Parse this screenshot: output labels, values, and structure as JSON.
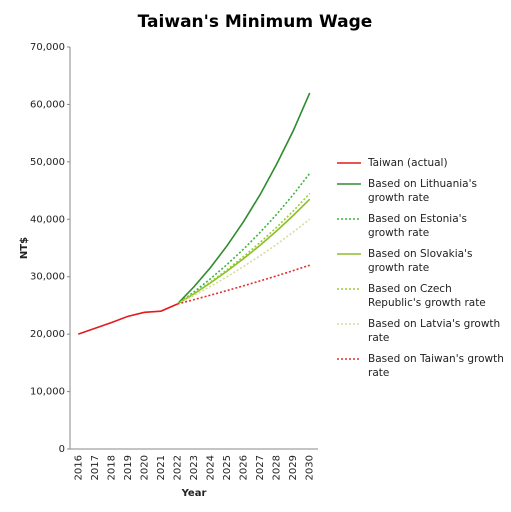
{
  "chart_data": {
    "type": "line",
    "title": "Taiwan's Minimum Wage",
    "x_label": "Year",
    "y_label": "NT$",
    "categories": [
      "2016",
      "2017",
      "2018",
      "2019",
      "2020",
      "2021",
      "2022",
      "2023",
      "2024",
      "2025",
      "2026",
      "2027",
      "2028",
      "2029",
      "2030"
    ],
    "ylim": [
      0,
      70000
    ],
    "yticks": [
      0,
      {
        "value": 10000,
        "label": "10,000"
      },
      {
        "value": 20000,
        "label": "20,000"
      },
      {
        "value": 30000,
        "label": "30,000"
      },
      {
        "value": 40000,
        "label": "40,000"
      },
      {
        "value": 50000,
        "label": "50,000"
      },
      {
        "value": 60000,
        "label": "60,000"
      },
      {
        "value": 70000,
        "label": "70,000"
      }
    ],
    "grid": false,
    "series": [
      {
        "name": "Taiwan (actual)",
        "color": "#e41a1c",
        "dash": "solid",
        "values": [
          20008,
          21009,
          22000,
          23100,
          23800,
          24000,
          25250,
          null,
          null,
          null,
          null,
          null,
          null,
          null,
          null
        ]
      },
      {
        "name": "Based on Lithuania's growth rate",
        "color": "#2e8b2e",
        "dash": "solid",
        "values": [
          null,
          null,
          null,
          null,
          null,
          null,
          25250,
          28250,
          31600,
          35400,
          39600,
          44300,
          49600,
          55400,
          62000
        ]
      },
      {
        "name": "Based on Estonia's growth rate",
        "color": "#3cb43c",
        "dash": "dotted",
        "values": [
          null,
          null,
          null,
          null,
          null,
          null,
          25250,
          27360,
          29650,
          32130,
          34810,
          37720,
          40870,
          44290,
          48000
        ]
      },
      {
        "name": "Based on Slovakia's growth rate",
        "color": "#8cbf26",
        "dash": "solid",
        "values": [
          null,
          null,
          null,
          null,
          null,
          null,
          25250,
          27030,
          28930,
          30970,
          33150,
          35480,
          37980,
          40660,
          43500
        ]
      },
      {
        "name": "Based on Czech Republic's growth rate",
        "color": "#9acd32",
        "dash": "dotted",
        "values": [
          null,
          null,
          null,
          null,
          null,
          null,
          25250,
          27100,
          29090,
          31220,
          33510,
          35970,
          38610,
          41440,
          44500
        ]
      },
      {
        "name": "Based on Latvia's growth rate",
        "color": "#d4dca0",
        "dash": "dotted",
        "values": [
          null,
          null,
          null,
          null,
          null,
          null,
          25250,
          26740,
          28330,
          30000,
          31780,
          33660,
          35650,
          37770,
          40000
        ]
      },
      {
        "name": "Based on Taiwan's growth rate",
        "color": "#e03030",
        "dash": "dotted",
        "values": [
          null,
          null,
          null,
          null,
          null,
          null,
          25250,
          26010,
          26790,
          27590,
          28420,
          29270,
          30150,
          31060,
          32000
        ]
      }
    ]
  }
}
